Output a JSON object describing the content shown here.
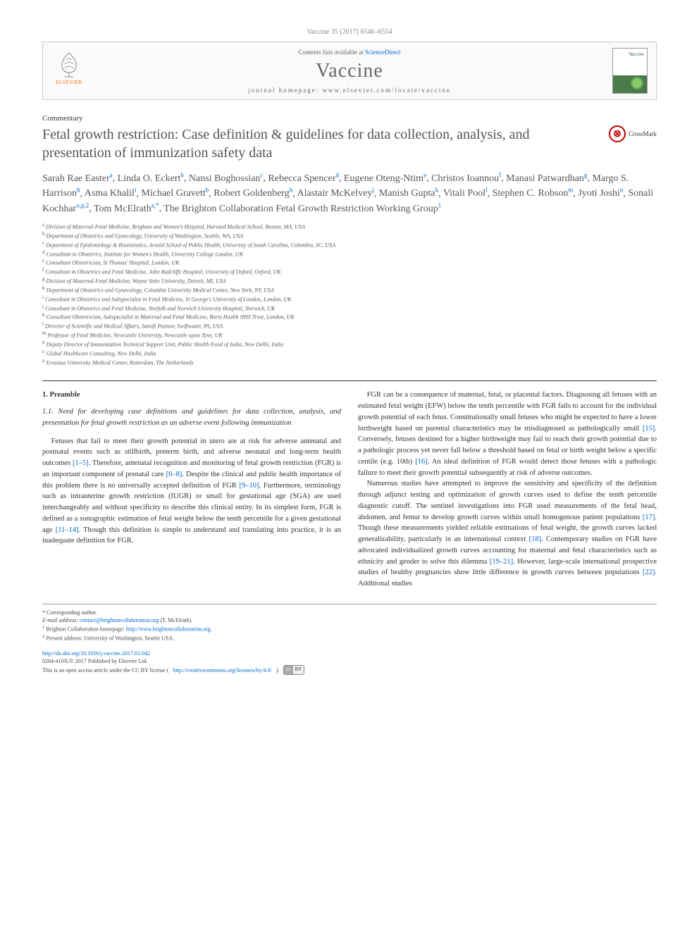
{
  "header": {
    "citation": "Vaccine 35 (2017) 6546–6554"
  },
  "journal_box": {
    "elsevier": "ELSEVIER",
    "contents_prefix": "Contents lists available at ",
    "contents_link": "ScienceDirect",
    "journal_name": "Vaccine",
    "homepage_prefix": "journal homepage: ",
    "homepage": "www.elsevier.com/locate/vaccine",
    "cover_label": "Vaccine"
  },
  "article": {
    "type": "Commentary",
    "title": "Fetal growth restriction: Case definition & guidelines for data collection, analysis, and presentation of immunization safety data",
    "crossmark": "CrossMark"
  },
  "authors": [
    {
      "name": "Sarah Rae Easter",
      "sup": "a"
    },
    {
      "name": "Linda O. Eckert",
      "sup": "b"
    },
    {
      "name": "Nansi Boghossian",
      "sup": "c"
    },
    {
      "name": "Rebecca Spencer",
      "sup": "d"
    },
    {
      "name": "Eugene Oteng-Ntim",
      "sup": "e"
    },
    {
      "name": "Christos Ioannou",
      "sup": "f"
    },
    {
      "name": "Manasi Patwardhan",
      "sup": "g"
    },
    {
      "name": "Margo S. Harrison",
      "sup": "h"
    },
    {
      "name": "Asma Khalil",
      "sup": "i"
    },
    {
      "name": "Michael Gravett",
      "sup": "b"
    },
    {
      "name": "Robert Goldenberg",
      "sup": "h"
    },
    {
      "name": "Alastair McKelvey",
      "sup": "j"
    },
    {
      "name": "Manish Gupta",
      "sup": "k"
    },
    {
      "name": "Vitali Pool",
      "sup": "l"
    },
    {
      "name": "Stephen C. Robson",
      "sup": "m"
    },
    {
      "name": "Jyoti Joshi",
      "sup": "n"
    },
    {
      "name": "Sonali Kochhar",
      "sup": "o,p,2"
    },
    {
      "name": "Tom McElrath",
      "sup": "a,*"
    },
    {
      "name": "The Brighton Collaboration Fetal Growth Restriction Working Group",
      "sup": "1"
    }
  ],
  "affiliations": [
    {
      "sup": "a",
      "text": "Division of Maternal-Fetal Medicine, Brigham and Women's Hospital, Harvard Medical School, Boston, MA, USA"
    },
    {
      "sup": "b",
      "text": "Department of Obstetrics and Gynecology, University of Washington, Seattle, WA, USA"
    },
    {
      "sup": "c",
      "text": "Department of Epidemiology & Biostatistics, Arnold School of Public Health, University of South Carolina, Columbia, SC, USA"
    },
    {
      "sup": "d",
      "text": "Consultant in Obstetrics, Institute for Women's Health, University College London, UK"
    },
    {
      "sup": "e",
      "text": "Consultant Obstetrician, St Thomas' Hospital, London, UK"
    },
    {
      "sup": "f",
      "text": "Consultant in Obstetrics and Fetal Medicine, John Radcliffe Hospital, University of Oxford, Oxford, UK"
    },
    {
      "sup": "g",
      "text": "Division of Maternal-Fetal Medicine, Wayne State University, Detroit, MI, USA"
    },
    {
      "sup": "h",
      "text": "Department of Obstetrics and Gynecology, Columbia University Medical Center, New York, NY, USA"
    },
    {
      "sup": "i",
      "text": "Consultant in Obstetrics and Subspecialist in Fetal Medicine, St George's University of London, London, UK"
    },
    {
      "sup": "j",
      "text": "Consultant in Obstetrics and Fetal Medicine, Norfolk and Norwich University Hospital, Norwich, UK"
    },
    {
      "sup": "k",
      "text": "Consultant Obstetrician, Subspecialist in Maternal and Fetal Medicine, Barts Health NHS Trust, London, UK"
    },
    {
      "sup": "l",
      "text": "Director of Scientific and Medical Affairs, Sanofi Pasteur, Swiftwater, PA, USA"
    },
    {
      "sup": "m",
      "text": "Professor of Fetal Medicine, Newcastle University, Newcastle upon Tyne, UK"
    },
    {
      "sup": "n",
      "text": "Deputy Director of Immunization Technical Support Unit, Public Health Fund of India, New Delhi, India"
    },
    {
      "sup": "o",
      "text": "Global Healthcare Consulting, New Delhi, India"
    },
    {
      "sup": "p",
      "text": "Erasmus University Medical Center, Rotterdam, The Netherlands"
    }
  ],
  "body": {
    "section_1": "1. Preamble",
    "subsection_1_1": "1.1. Need for developing case definitions and guidelines for data collection, analysis, and presentation for fetal growth restriction as an adverse event following immunization",
    "left_p1a": "Fetuses that fail to meet their growth potential in utero are at risk for adverse antenatal and postnatal events such as stillbirth, preterm birth, and adverse neonatal and long-term health outcomes ",
    "left_ref1": "[1–5]",
    "left_p1b": ". Therefore, antenatal recognition and monitoring of fetal growth restriction (FGR) is an important component of prenatal care ",
    "left_ref2": "[6–8]",
    "left_p1c": ". Despite the clinical and public health importance of this problem there is no universally accepted definition of FGR ",
    "left_ref3": "[9–10]",
    "left_p1d": ". Furthermore, terminology such as intrauterine growth restriction (IUGR) or small for gestational age (SGA) are used interchangeably and without specificity to describe this clinical entity. In its simplest form, FGR is defined as a sonographic estimation of fetal weight below the tenth percentile for a given gestational age ",
    "left_ref4": "[11–14]",
    "left_p1e": ". Though this definition is simple to understand and translating into practice, it is an inadequate definition for FGR.",
    "right_p1a": "FGR can be a consequence of maternal, fetal, or placental factors. Diagnosing all fetuses with an estimated fetal weight (EFW) below the tenth percentile with FGR fails to account for the individual growth potential of each fetus. Constitutionally small fetuses who might be expected to have a lower birthweight based on parental characteristics may be misdiagnosed as pathologically small ",
    "right_ref1": "[15]",
    "right_p1b": ". Conversely, fetuses destined for a higher birthweight may fail to reach their growth potential due to a pathologic process yet never fall below a threshold based on fetal or birth weight below a specific centile (e.g. 10th) ",
    "right_ref2": "[16]",
    "right_p1c": ". An ideal definition of FGR would detect those fetuses with a pathologic failure to meet their growth potential subsequently at risk of adverse outcomes.",
    "right_p2a": "Numerous studies have attempted to improve the sensitivity and specificity of the definition through adjunct testing and optimization of growth curves used to define the tenth percentile diagnostic cutoff. The sentinel investigations into FGR used measurements of the fetal head, abdomen, and femur to develop growth curves within small homogenous patient populations ",
    "right_ref3": "[17]",
    "right_p2b": ". Though these measurements yielded reliable estimations of fetal weight, the growth curves lacked generalizability, particularly in an international context ",
    "right_ref4": "[18]",
    "right_p2c": ". Contemporary studies on FGR have advocated individualized growth curves accounting for maternal and fetal characteristics such as ethnicity and gender to solve this dilemma ",
    "right_ref5": "[19–21]",
    "right_p2d": ". However, large-scale international prospective studies of healthy pregnancies show little difference in growth curves between populations ",
    "right_ref6": "[22]",
    "right_p2e": ". Additional studies"
  },
  "footer": {
    "corr": "* Corresponding author.",
    "email_label": "E-mail address: ",
    "email": "contact@brightoncollaboration.org",
    "email_suffix": " (T. McElrath).",
    "fn1_label": "1",
    "fn1": " Brighton Collaboration homepage: ",
    "fn1_link": "http://www.brightoncollaboration.org",
    "fn1_suffix": ".",
    "fn2_label": "2",
    "fn2": " Present address: University of Washington, Seattle USA.",
    "doi": "http://dx.doi.org/10.1016/j.vaccine.2017.01.042",
    "issn": "0264-410X/© 2017 Published by Elsevier Ltd.",
    "license_text": "This is an open access article under the CC BY license (",
    "license_link": "http://creativecommons.org/licenses/by/4.0/",
    "license_suffix": ").",
    "cc_left": "cc",
    "cc_right": "BY"
  },
  "colors": {
    "link": "#0066cc",
    "elsevier_orange": "#ff6600",
    "crossmark_red": "#b00000",
    "text_grey": "#555555"
  }
}
